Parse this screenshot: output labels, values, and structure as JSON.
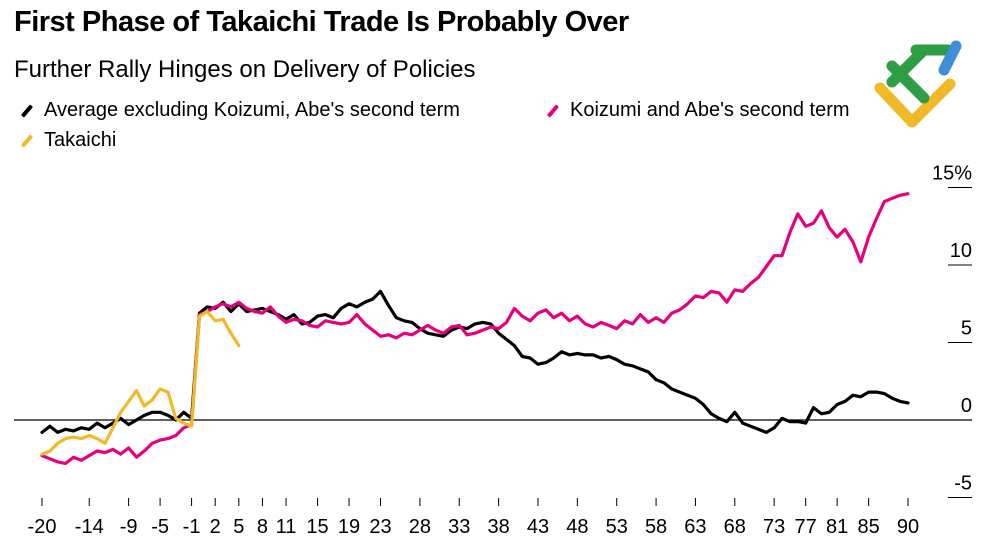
{
  "chart_data": {
    "type": "line",
    "title": "First Phase of Takaichi Trade Is Probably Over",
    "subtitle": "Further Rally Hinges on Delivery of Policies",
    "xlabel": "",
    "ylabel": "",
    "x_ticks": [
      "-20",
      "-14",
      "-9",
      "-5",
      "-1",
      "2",
      "5",
      "8",
      "11",
      "15",
      "19",
      "23",
      "28",
      "33",
      "38",
      "43",
      "48",
      "53",
      "58",
      "63",
      "68",
      "73",
      "77",
      "81",
      "85",
      "90"
    ],
    "y_ticks": [
      "15%",
      "10",
      "5",
      "0",
      "-5"
    ],
    "y_tick_values": [
      15,
      10,
      5,
      0,
      -5
    ],
    "xlim": [
      -20,
      90
    ],
    "ylim": [
      -6,
      16
    ],
    "series": [
      {
        "name": "Average excluding Koizumi, Abe's second term",
        "color": "#000000",
        "x": [
          -20,
          -19,
          -18,
          -17,
          -16,
          -15,
          -14,
          -13,
          -12,
          -11,
          -10,
          -9,
          -8,
          -7,
          -6,
          -5,
          -4,
          -3,
          -2,
          -1,
          0,
          1,
          2,
          3,
          4,
          5,
          6,
          7,
          8,
          9,
          10,
          11,
          12,
          13,
          14,
          15,
          16,
          17,
          18,
          19,
          20,
          21,
          22,
          23,
          24,
          25,
          26,
          27,
          28,
          29,
          30,
          31,
          32,
          33,
          34,
          35,
          36,
          37,
          38,
          39,
          40,
          41,
          42,
          43,
          44,
          45,
          46,
          47,
          48,
          49,
          50,
          51,
          52,
          53,
          54,
          55,
          56,
          57,
          58,
          59,
          60,
          61,
          62,
          63,
          64,
          65,
          66,
          67,
          68,
          69,
          70,
          71,
          72,
          73,
          74,
          75,
          76,
          77,
          78,
          79,
          80,
          81,
          82,
          83,
          84,
          85,
          86,
          87,
          88,
          89,
          90
        ],
        "y": [
          -0.8,
          -0.4,
          -0.8,
          -0.6,
          -0.7,
          -0.5,
          -0.6,
          -0.2,
          -0.5,
          -0.2,
          0.1,
          -0.3,
          0.0,
          0.3,
          0.5,
          0.5,
          0.3,
          0.0,
          0.5,
          0.1,
          6.9,
          7.3,
          7.2,
          7.6,
          7.0,
          7.5,
          7.0,
          7.1,
          7.2,
          7.0,
          6.8,
          6.5,
          6.8,
          6.2,
          6.3,
          6.7,
          6.8,
          6.6,
          7.2,
          7.5,
          7.3,
          7.6,
          7.8,
          8.3,
          7.4,
          6.6,
          6.4,
          6.3,
          5.9,
          5.6,
          5.5,
          5.4,
          5.8,
          6.0,
          5.9,
          6.2,
          6.3,
          6.2,
          5.6,
          5.2,
          4.8,
          4.1,
          4.0,
          3.6,
          3.7,
          4.0,
          4.4,
          4.2,
          4.3,
          4.2,
          4.2,
          4.0,
          4.1,
          3.9,
          3.6,
          3.5,
          3.3,
          3.1,
          2.6,
          2.4,
          2.0,
          1.8,
          1.6,
          1.4,
          1.0,
          0.4,
          0.1,
          -0.1,
          0.5,
          -0.2,
          -0.4,
          -0.6,
          -0.8,
          -0.5,
          0.1,
          -0.1,
          -0.1,
          -0.2,
          0.8,
          0.4,
          0.5,
          1.0,
          1.2,
          1.6,
          1.5,
          1.8,
          1.8,
          1.7,
          1.4,
          1.2,
          1.1
        ],
        "note": "gaps in index alignment approximated; line read off chart"
      },
      {
        "name": "Koizumi and Abe's second term",
        "color": "#e6007e",
        "x": [
          -20,
          -19,
          -18,
          -17,
          -16,
          -15,
          -14,
          -13,
          -12,
          -11,
          -10,
          -9,
          -8,
          -7,
          -6,
          -5,
          -4,
          -3,
          -2,
          -1,
          0,
          1,
          2,
          3,
          4,
          5,
          6,
          7,
          8,
          9,
          10,
          11,
          12,
          13,
          14,
          15,
          16,
          17,
          18,
          19,
          20,
          21,
          22,
          23,
          24,
          25,
          26,
          27,
          28,
          29,
          30,
          31,
          32,
          33,
          34,
          35,
          36,
          37,
          38,
          39,
          40,
          41,
          42,
          43,
          44,
          45,
          46,
          47,
          48,
          49,
          50,
          51,
          52,
          53,
          54,
          55,
          56,
          57,
          58,
          59,
          60,
          61,
          62,
          63,
          64,
          65,
          66,
          67,
          68,
          69,
          70,
          71,
          72,
          73,
          74,
          75,
          76,
          77,
          78,
          79,
          80,
          81,
          82,
          83,
          84,
          85,
          86,
          87,
          88,
          89,
          90
        ],
        "y": [
          -2.3,
          -2.5,
          -2.7,
          -2.8,
          -2.4,
          -2.6,
          -2.3,
          -2.0,
          -2.1,
          -1.9,
          -2.2,
          -1.8,
          -2.4,
          -2.0,
          -1.5,
          -1.3,
          -1.2,
          -1.0,
          -0.5,
          -0.3,
          6.8,
          7.0,
          7.3,
          7.5,
          7.3,
          7.6,
          7.2,
          7.0,
          6.9,
          7.3,
          6.7,
          6.3,
          6.5,
          6.4,
          6.1,
          6.0,
          6.4,
          6.3,
          6.2,
          6.3,
          6.8,
          6.2,
          5.8,
          5.4,
          5.5,
          5.3,
          5.6,
          5.5,
          5.8,
          6.1,
          5.8,
          5.6,
          6.0,
          6.1,
          5.5,
          5.6,
          5.8,
          6.0,
          5.9,
          6.3,
          7.2,
          6.7,
          6.4,
          6.9,
          7.1,
          6.6,
          6.9,
          6.4,
          6.7,
          6.2,
          6.0,
          6.3,
          6.1,
          5.9,
          6.4,
          6.2,
          6.8,
          6.3,
          6.6,
          6.3,
          6.9,
          7.1,
          7.5,
          8.0,
          7.9,
          8.3,
          8.2,
          7.6,
          8.4,
          8.3,
          8.8,
          9.2,
          9.9,
          10.6,
          10.6,
          12.1,
          13.3,
          12.5,
          12.7,
          13.5,
          12.4,
          11.8,
          12.3,
          11.5,
          10.2,
          11.8,
          13.0,
          14.1,
          14.3,
          14.5,
          14.6
        ],
        "note": "line read off chart"
      },
      {
        "name": "Takaichi",
        "color": "#f2b927",
        "x": [
          -20,
          -19,
          -18,
          -17,
          -16,
          -15,
          -14,
          -13,
          -12,
          -11,
          -10,
          -9,
          -8,
          -7,
          -6,
          -5,
          -4,
          -3,
          -2,
          -1,
          0,
          1,
          2,
          3,
          4,
          5
        ],
        "y": [
          -2.2,
          -2.0,
          -1.5,
          -1.2,
          -1.1,
          -1.2,
          -1.0,
          -1.2,
          -1.5,
          -0.5,
          0.5,
          1.2,
          1.9,
          0.9,
          1.3,
          2.0,
          1.8,
          0.1,
          -0.2,
          -0.4,
          6.7,
          7.0,
          6.4,
          6.5,
          5.6,
          4.8
        ],
        "note": "line read off chart"
      }
    ]
  },
  "legend": [
    {
      "label": "Average excluding Koizumi, Abe's second term",
      "color": "#000000"
    },
    {
      "label": "Koizumi and Abe's second term",
      "color": "#e6007e"
    },
    {
      "label": "Takaichi",
      "color": "#f2b927"
    }
  ],
  "logo": {
    "colors": [
      "#2e9e44",
      "#f2b927",
      "#3f8fd8"
    ]
  }
}
